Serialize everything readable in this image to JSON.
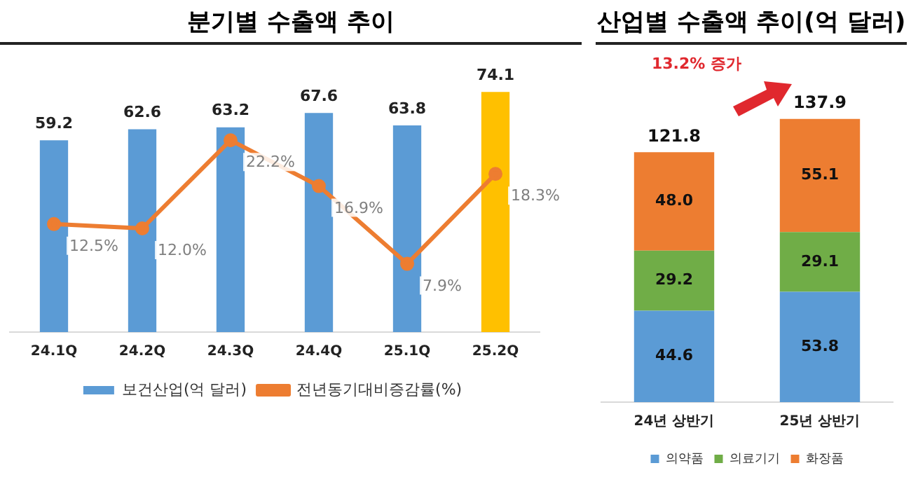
{
  "chart_data": [
    {
      "type": "bar",
      "title": "분기별 수출액 추이",
      "categories": [
        "24.1Q",
        "24.2Q",
        "24.3Q",
        "24.4Q",
        "25.1Q",
        "25.2Q"
      ],
      "series": [
        {
          "name": "보건산업(억 달러)",
          "colors": [
            "#5b9bd5",
            "#5b9bd5",
            "#5b9bd5",
            "#5b9bd5",
            "#5b9bd5",
            "#ffc000"
          ],
          "values": [
            59.2,
            62.6,
            63.2,
            67.6,
            63.8,
            74.1
          ],
          "value_labels": [
            "59.2",
            "62.6",
            "63.2",
            "67.6",
            "63.8",
            "74.1"
          ]
        },
        {
          "name": "전년동기대비증감률(%)",
          "type": "line",
          "axis": "y2",
          "color": "#ed7d31",
          "values": [
            12.5,
            12.0,
            22.2,
            16.9,
            7.9,
            18.3
          ],
          "value_labels": [
            "12.5%",
            "12.0%",
            "22.2%",
            "16.9%",
            "7.9%",
            "18.3%"
          ]
        }
      ],
      "tick_labels": "x",
      "legend": "bottom",
      "marker": "circle"
    },
    {
      "type": "bar",
      "title": "산업별 수출액 추이(억 달러)",
      "categories": [
        "24년 상반기",
        "25년 상반기"
      ],
      "stacked": true,
      "series": [
        {
          "name": "의약품",
          "color": "#5b9bd5",
          "values": [
            44.6,
            53.8
          ],
          "value_labels": [
            "44.6",
            "53.8"
          ]
        },
        {
          "name": "의료기기",
          "color": "#70ad47",
          "values": [
            29.2,
            29.1
          ],
          "value_labels": [
            "29.2",
            "29.1"
          ]
        },
        {
          "name": "화장품",
          "color": "#ed7d31",
          "values": [
            48.0,
            55.1
          ],
          "value_labels": [
            "48.0",
            "55.1"
          ]
        }
      ],
      "totals": [
        "121.8",
        "137.9"
      ],
      "annotations": [
        "13.2% 증가"
      ],
      "tick_labels": "x",
      "legend": "bottom"
    }
  ]
}
